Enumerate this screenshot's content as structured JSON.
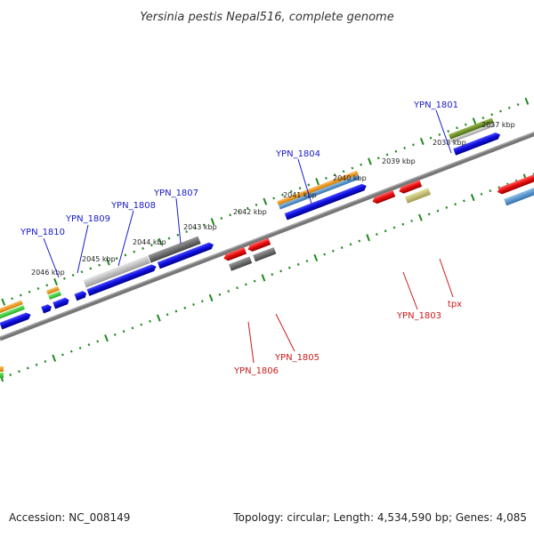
{
  "title": "Yersinia pestis Nepal516, complete genome",
  "footer": {
    "accession": "Accession: NC_008149",
    "summary": "Topology: circular; Length: 4,534,590 bp; Genes: 4,085"
  },
  "ruler_labels": [
    "2046 kbp",
    "2045 kbp",
    "2044 kbp",
    "2043 kbp",
    "2042 kbp",
    "2041 kbp",
    "2040 kbp",
    "2039 kbp",
    "2038 kbp",
    "2037 kbp"
  ],
  "gene_labels_top": [
    "YPN_1810",
    "YPN_1809",
    "YPN_1808",
    "YPN_1807",
    "YPN_1804",
    "YPN_1801"
  ],
  "gene_labels_bottom": [
    "YPN_1806",
    "YPN_1805",
    "YPN_1803",
    "tpx"
  ],
  "colors": {
    "label_forward": "#1a1acc",
    "label_reverse": "#cc1a1a",
    "cds_blue": "#1010e0",
    "cds_red": "#ee1111",
    "orange": "#f59a10",
    "green": "#33cc33",
    "steelblue": "#4f8fc8",
    "grey_dark": "#666666",
    "grey_light": "#bbbbbb",
    "olive": "#6b8e23",
    "khaki": "#c8c27a",
    "ruler": "#1e8a1e",
    "backbone": "#777777"
  }
}
